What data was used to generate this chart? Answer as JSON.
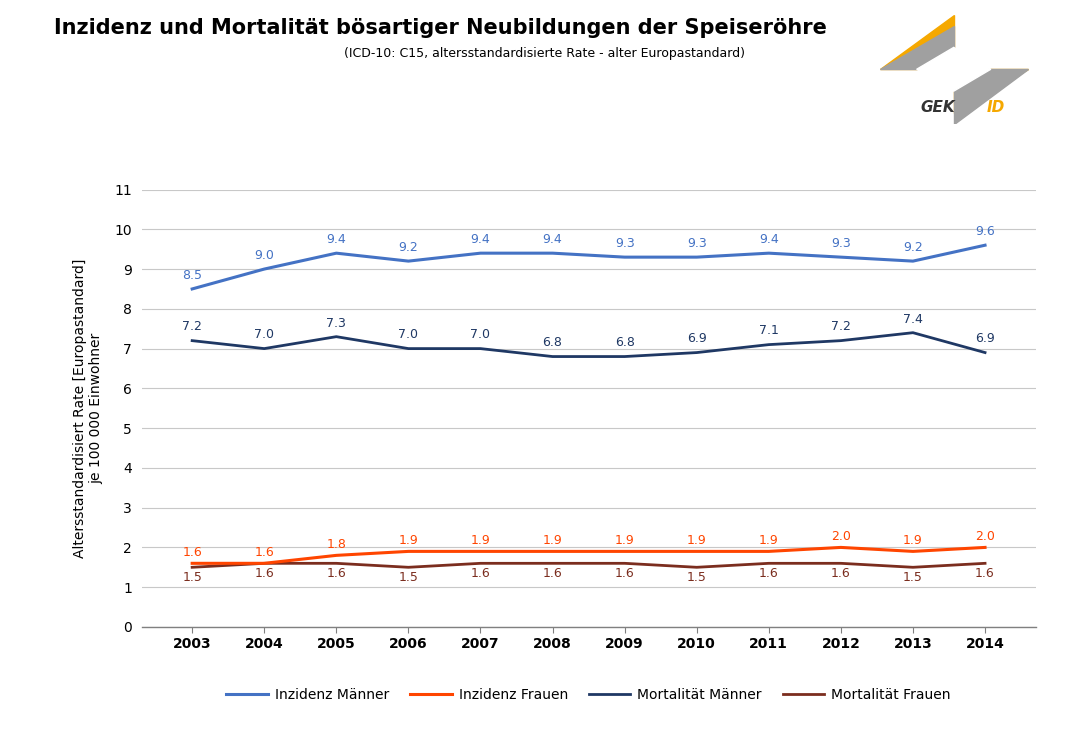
{
  "title": "Inzidenz und Mortalität bösartiger Neubildungen der Speiseröhre",
  "subtitle": "(ICD-10: C15, altersstandardisierte Rate - alter Europastandard)",
  "ylabel": "Altersstandardisiert Rate [Europastandard]\nje 100 000 Einwohner",
  "years": [
    2003,
    2004,
    2005,
    2006,
    2007,
    2008,
    2009,
    2010,
    2011,
    2012,
    2013,
    2014
  ],
  "inzidenz_maenner": [
    8.5,
    9.0,
    9.4,
    9.2,
    9.4,
    9.4,
    9.3,
    9.3,
    9.4,
    9.3,
    9.2,
    9.6
  ],
  "mortalitaet_maenner": [
    7.2,
    7.0,
    7.3,
    7.0,
    7.0,
    6.8,
    6.8,
    6.9,
    7.1,
    7.2,
    7.4,
    6.9
  ],
  "inzidenz_frauen": [
    1.6,
    1.6,
    1.8,
    1.9,
    1.9,
    1.9,
    1.9,
    1.9,
    1.9,
    2.0,
    1.9,
    2.0
  ],
  "mortalitaet_frauen": [
    1.5,
    1.6,
    1.6,
    1.5,
    1.6,
    1.6,
    1.6,
    1.5,
    1.6,
    1.6,
    1.5,
    1.6
  ],
  "color_inzidenz_maenner": "#4472C4",
  "color_inzidenz_frauen": "#FF4500",
  "color_mortalitaet_maenner": "#1F3864",
  "color_mortalitaet_frauen": "#7B2D1E",
  "ylim": [
    0,
    11
  ],
  "yticks": [
    0,
    1,
    2,
    3,
    4,
    5,
    6,
    7,
    8,
    9,
    10,
    11
  ],
  "legend_labels": [
    "Inzidenz Männer",
    "Inzidenz Frauen",
    "Mortalität Männer",
    "Mortalität Frauen"
  ],
  "background_color": "#FFFFFF",
  "grid_color": "#C8C8C8",
  "logo_gold": "#F5A800",
  "logo_dark": "#C87000",
  "logo_gray": "#A0A0A0",
  "logo_white": "#FFFFFF"
}
